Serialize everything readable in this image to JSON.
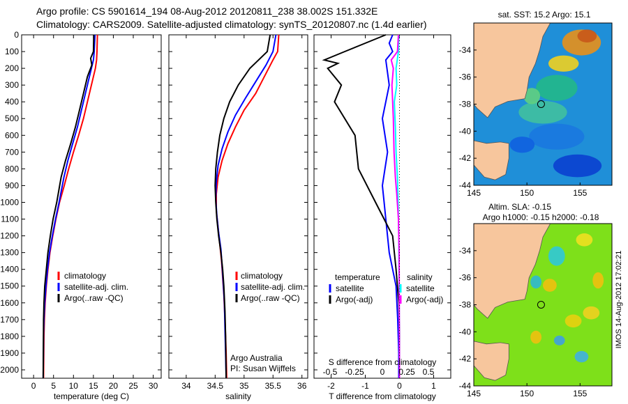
{
  "header": {
    "line1": "Argo profile: CS 5901614_194 08-Aug-2012 20120811_238 38.002S 151.332E",
    "line2": "Climatology: CARS2009. Satellite-adjusted climatology: synTS_20120807.nc (1.4d earlier)"
  },
  "side_text": "IMOS 14-Aug-2012 17:02:21",
  "credits": {
    "org": "Argo Australia",
    "pi": "PI: Susan Wijffels"
  },
  "colors": {
    "climatology": "#ff0000",
    "satellite": "#0000ff",
    "argo": "#000000",
    "sat_salinity": "#00ffff",
    "argo_salinity": "#ff00ff"
  },
  "chart_data": [
    {
      "type": "line",
      "xlabel": "temperature (deg C)",
      "xlim": [
        -3,
        32
      ],
      "xticks": [
        0,
        5,
        10,
        15,
        20,
        25,
        30
      ],
      "ylim": [
        0,
        2050
      ],
      "yticks": [
        0,
        100,
        200,
        300,
        400,
        500,
        600,
        700,
        800,
        900,
        1000,
        1100,
        1200,
        1300,
        1400,
        1500,
        1600,
        1700,
        1800,
        1900,
        2000
      ],
      "legend": [
        {
          "label": "climatology",
          "color": "#ff0000"
        },
        {
          "label": "satellite-adj. clim.",
          "color": "#0000ff"
        },
        {
          "label": "Argo(..raw -QC)",
          "color": "#000000"
        }
      ],
      "series": [
        {
          "name": "climatology",
          "color": "#ff0000",
          "x": [
            16.0,
            15.9,
            15.8,
            15.5,
            14.5,
            13.5,
            12.5,
            11.3,
            10.0,
            8.8,
            7.7,
            6.5,
            5.6,
            4.8,
            4.1,
            3.6,
            3.2,
            2.9,
            2.7,
            2.6,
            2.5
          ],
          "y": [
            0,
            100,
            150,
            200,
            300,
            400,
            500,
            600,
            700,
            800,
            900,
            1000,
            1100,
            1200,
            1300,
            1400,
            1500,
            1600,
            1700,
            1800,
            2050
          ]
        },
        {
          "name": "satellite-adj. clim.",
          "color": "#0000ff",
          "x": [
            15.4,
            15.2,
            15.0,
            14.0,
            13.0,
            12.0,
            11.0,
            9.8,
            8.6,
            7.6,
            6.4,
            5.5,
            4.7,
            4.0,
            3.5,
            3.1,
            2.8,
            2.6,
            2.5,
            2.4
          ],
          "y": [
            0,
            100,
            150,
            250,
            350,
            450,
            550,
            650,
            750,
            850,
            1000,
            1100,
            1200,
            1300,
            1400,
            1500,
            1600,
            1700,
            1800,
            2050
          ]
        },
        {
          "name": "Argo(..raw -QC)",
          "color": "#000000",
          "x": [
            15.1,
            15.0,
            14.3,
            14.6,
            13.5,
            12.5,
            11.5,
            10.5,
            9.3,
            8.0,
            6.9,
            5.8,
            4.9,
            4.2,
            3.6,
            3.2,
            2.8,
            2.6,
            2.5,
            2.4
          ],
          "y": [
            0,
            100,
            140,
            180,
            250,
            350,
            450,
            550,
            650,
            750,
            850,
            1000,
            1100,
            1200,
            1300,
            1400,
            1500,
            1600,
            1700,
            2050
          ]
        }
      ]
    },
    {
      "type": "line",
      "xlabel": "salinity",
      "xlim": [
        33.7,
        36.1
      ],
      "xticks": [
        34,
        34.5,
        35,
        35.5,
        36
      ],
      "ylim": [
        0,
        2050
      ],
      "legend": [
        {
          "label": "climatology",
          "color": "#ff0000"
        },
        {
          "label": "satellite-adj. clim.",
          "color": "#0000ff"
        },
        {
          "label": "Argo(..raw -QC)",
          "color": "#000000"
        }
      ],
      "series": [
        {
          "name": "climatology",
          "color": "#ff0000",
          "x": [
            35.6,
            35.58,
            35.5,
            35.35,
            35.2,
            35.0,
            34.85,
            34.72,
            34.62,
            34.55,
            34.52,
            34.52,
            34.55,
            34.58,
            34.61,
            34.63,
            34.65,
            34.67,
            34.68,
            34.69,
            34.7
          ],
          "y": [
            0,
            100,
            150,
            250,
            350,
            450,
            550,
            650,
            750,
            850,
            950,
            1050,
            1150,
            1250,
            1350,
            1450,
            1550,
            1700,
            1800,
            1900,
            2050
          ]
        },
        {
          "name": "satellite-adj. clim.",
          "color": "#0000ff",
          "x": [
            35.55,
            35.5,
            35.38,
            35.2,
            35.02,
            34.85,
            34.72,
            34.62,
            34.55,
            34.52,
            34.51,
            34.53,
            34.56,
            34.6,
            34.62,
            34.64,
            34.66,
            34.67,
            34.68,
            34.69
          ],
          "y": [
            0,
            100,
            180,
            280,
            380,
            480,
            580,
            680,
            780,
            880,
            980,
            1080,
            1180,
            1280,
            1380,
            1480,
            1600,
            1750,
            1900,
            2050
          ]
        },
        {
          "name": "Argo(..raw -QC)",
          "color": "#000000",
          "x": [
            35.45,
            35.4,
            35.1,
            34.9,
            34.75,
            34.65,
            34.58,
            34.54,
            34.51,
            34.5,
            34.51,
            34.53,
            34.56,
            34.6,
            34.63,
            34.65,
            34.67,
            34.68,
            34.69
          ],
          "y": [
            0,
            100,
            200,
            300,
            400,
            500,
            600,
            700,
            800,
            900,
            1000,
            1100,
            1200,
            1300,
            1400,
            1500,
            1650,
            1800,
            2050
          ]
        }
      ]
    },
    {
      "type": "line",
      "xlabel": "T difference from climatology",
      "xlim": [
        -2.5,
        1.5
      ],
      "xticks": [
        -2,
        -1,
        0,
        1
      ],
      "xlabel2": "S difference from climatology",
      "xticks2": [
        "-0.5",
        "-0.25",
        "0",
        "0.25",
        "0.5"
      ],
      "ylim": [
        0,
        2050
      ],
      "legend_left_title": "temperature",
      "legend_right_title": "salinity",
      "legend_left": [
        {
          "label": "satellite",
          "color": "#0000ff"
        },
        {
          "label": "Argo(-adj)",
          "color": "#000000"
        }
      ],
      "legend_right": [
        {
          "label": "satellite",
          "color": "#00ffff"
        },
        {
          "label": "Argo(-adj)",
          "color": "#ff00ff"
        }
      ],
      "series": [
        {
          "name": "temperature satellite",
          "color": "#0000ff",
          "x": [
            -0.2,
            -0.3,
            -0.2,
            -0.4,
            -0.3,
            -0.5,
            -0.35,
            -0.5,
            -0.45,
            -0.4,
            -0.3,
            -0.1,
            -0.05,
            -0.02,
            -0.02,
            -0.02
          ],
          "y": [
            0,
            50,
            100,
            150,
            300,
            500,
            700,
            900,
            1000,
            1100,
            1300,
            1500,
            1700,
            1900,
            2000,
            2050
          ]
        },
        {
          "name": "temperature Argo(-adj)",
          "color": "#000000",
          "x": [
            -0.4,
            -1.0,
            -1.6,
            -2.2,
            -1.8,
            -2.1,
            -1.7,
            -1.9,
            -1.3,
            -1.2,
            -0.7,
            -0.45,
            -0.2,
            -0.1,
            -0.02,
            0.0,
            0.0
          ],
          "y": [
            0,
            50,
            100,
            150,
            170,
            200,
            300,
            400,
            600,
            800,
            1000,
            1100,
            1200,
            1400,
            1600,
            1800,
            2050
          ]
        },
        {
          "name": "salinity satellite",
          "color": "#00ffff",
          "x": [
            -0.02,
            -0.03,
            -0.1,
            -0.08,
            -0.15,
            -0.12,
            -0.1,
            -0.06,
            -0.04,
            -0.02,
            -0.01,
            0.0
          ],
          "y": [
            0,
            100,
            200,
            300,
            400,
            550,
            700,
            850,
            1000,
            1200,
            1500,
            2050
          ]
        },
        {
          "name": "salinity Argo(-adj)",
          "color": "#ff00ff",
          "x": [
            -0.03,
            -0.06,
            -0.24,
            -0.18,
            -0.22,
            -0.18,
            -0.16,
            -0.12,
            -0.08,
            -0.03,
            -0.01,
            0.0
          ],
          "y": [
            0,
            100,
            150,
            200,
            300,
            500,
            700,
            850,
            950,
            1100,
            1300,
            2050
          ]
        }
      ]
    },
    {
      "type": "heatmap",
      "title": "sat. SST: 15.2  Argo: 15.1",
      "xlim": [
        145,
        158
      ],
      "ylim": [
        -44,
        -32
      ],
      "xticks": [
        145,
        150,
        155
      ],
      "yticks": [
        -34,
        -36,
        -38,
        -40,
        -42,
        -44
      ],
      "marker": {
        "lon": 151.33,
        "lat": -38.0
      }
    },
    {
      "type": "heatmap",
      "title": "Altim. SLA: -0.15",
      "subtitle": "Argo h1000: -0.15  h2000: -0.18",
      "xlim": [
        145,
        158
      ],
      "ylim": [
        -44,
        -32
      ],
      "xticks": [
        145,
        150,
        155
      ],
      "yticks": [
        -34,
        -36,
        -38,
        -40,
        -42,
        -44
      ],
      "marker": {
        "lon": 151.33,
        "lat": -38.0
      }
    }
  ]
}
